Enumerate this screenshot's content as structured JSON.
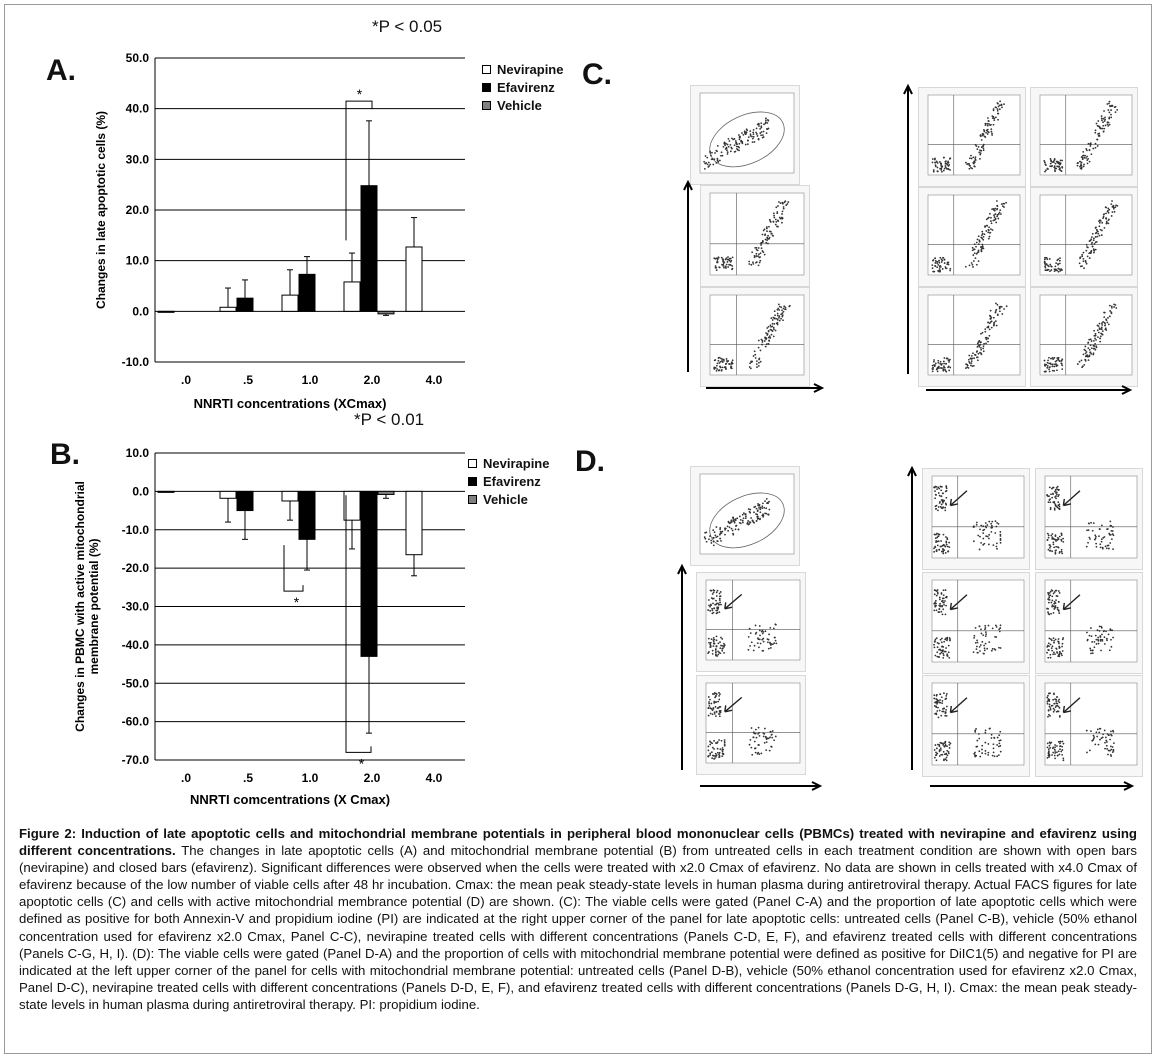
{
  "figure": {
    "panel_a": {
      "letter": "A.",
      "pvalue": "*P < 0.05"
    },
    "panel_b": {
      "letter": "B.",
      "pvalue": "*P < 0.01"
    },
    "panel_c": {
      "letter": "C."
    },
    "panel_d": {
      "letter": "D."
    },
    "legend": [
      "Nevirapine",
      "Efavirenz",
      "Vehicle"
    ],
    "colors": {
      "nevirapine": "#ffffff",
      "efavirenz": "#000000",
      "vehicle": "#808080"
    }
  },
  "chart_data": [
    {
      "type": "bar",
      "title": "A",
      "xlabel": "NNRTI concentrations (XCmax)",
      "ylabel": "Changes in late apoptotic cells (%)",
      "ylim": [
        -10,
        50
      ],
      "yticks": [
        "50.0",
        "40.0",
        "30.0",
        "20.0",
        "10.0",
        "0.0",
        "-10.0"
      ],
      "categories": [
        ".0",
        ".5",
        "1.0",
        "2.0",
        "4.0"
      ],
      "series": [
        {
          "name": "Nevirapine",
          "values": [
            0.0,
            0.8,
            3.2,
            5.8,
            12.7
          ],
          "errors": [
            0.0,
            3.8,
            5.0,
            5.7,
            5.8
          ]
        },
        {
          "name": "Efavirenz",
          "values": [
            null,
            2.6,
            7.3,
            24.8,
            null
          ],
          "errors": [
            null,
            3.6,
            3.5,
            12.8,
            null
          ]
        },
        {
          "name": "Vehicle",
          "values": [
            null,
            null,
            null,
            -0.5,
            null
          ],
          "errors": [
            null,
            null,
            null,
            0.3,
            null
          ]
        }
      ],
      "significance": {
        "label": "*",
        "category": "2.0",
        "between": [
          "Nevirapine",
          "Efavirenz"
        ]
      }
    },
    {
      "type": "bar",
      "title": "B",
      "xlabel": "NNRTI comcentrations (X Cmax)",
      "ylabel": "Changes in PBMC with active mitochondrial membrane potential (%)",
      "ylim": [
        -70,
        10
      ],
      "yticks": [
        "10.0",
        "0.0",
        "-10.0",
        "-20.0",
        "-30.0",
        "-40.0",
        "-50.0",
        "-60.0",
        "-70.0"
      ],
      "categories": [
        ".0",
        ".5",
        "1.0",
        "2.0",
        "4.0"
      ],
      "series": [
        {
          "name": "Nevirapine",
          "values": [
            0.0,
            -1.8,
            -2.5,
            -7.5,
            -16.5
          ],
          "errors": [
            0.0,
            6.2,
            5.0,
            7.5,
            5.5
          ]
        },
        {
          "name": "Efavirenz",
          "values": [
            null,
            -5.0,
            -12.5,
            -43.0,
            null
          ],
          "errors": [
            null,
            7.5,
            8.0,
            20.0,
            null
          ]
        },
        {
          "name": "Vehicle",
          "values": [
            null,
            null,
            null,
            -0.8,
            null
          ],
          "errors": [
            null,
            null,
            null,
            1.0,
            null
          ]
        }
      ],
      "significance": [
        {
          "label": "*",
          "category": "1.0",
          "between": [
            "Nevirapine",
            "Efavirenz"
          ]
        },
        {
          "label": "*",
          "category": "2.0",
          "between": [
            "Nevirapine",
            "Efavirenz"
          ]
        }
      ]
    }
  ],
  "caption": {
    "title": "Figure 2: Induction of late apoptotic cells and mitochondrial membrane potentials in peripheral blood mononuclear cells (PBMCs) treated with nevirapine and efavirenz using different concentrations.",
    "body": "The changes in late apoptotic cells (A) and mitochondrial membrane potential (B) from untreated cells in each treatment condition are shown with open bars (nevirapine) and closed bars (efavirenz). Significant differences were observed when the cells were treated with x2.0 Cmax of efavirenz. No data are shown in cells treated with x4.0 Cmax of efavirenz because of the low number of viable cells after 48 hr incubation. Cmax: the mean peak steady-state levels in human plasma during antiretroviral therapy. Actual FACS figures for late apoptotic cells (C) and cells with active mitochondrial membrance potential (D) are shown. (C): The viable cells were gated (Panel C-A) and the proportion of late apoptotic cells which were defined as positive for both Annexin-V and propidium iodine (PI) are indicated at the right upper corner of the panel for late apoptotic cells: untreated cells (Panel C-B), vehicle (50% ethanol concentration used for efavirenz x2.0 Cmax, Panel C-C), nevirapine treated cells with different concentrations (Panels C-D, E, F), and efavirenz treated cells with different concentrations (Panels C-G, H, I). (D): The viable cells were gated (Panel D-A) and the proportion of cells with mitochondrial membrane potential were defined as positive for DiIC1(5) and negative for PI are indicated at the left upper corner of the panel for cells with mitochondrial membrane potential: untreated cells (Panel D-B), vehicle (50% ethanol concentration used for efavirenz x2.0 Cmax, Panel D-C), nevirapine treated cells with different concentrations (Panels D-D, E, F), and efavirenz treated cells with different concentrations (Panels D-G, H, I). Cmax: the mean peak steady-state levels in human plasma during antiretroviral therapy. PI: propidium iodine."
  }
}
